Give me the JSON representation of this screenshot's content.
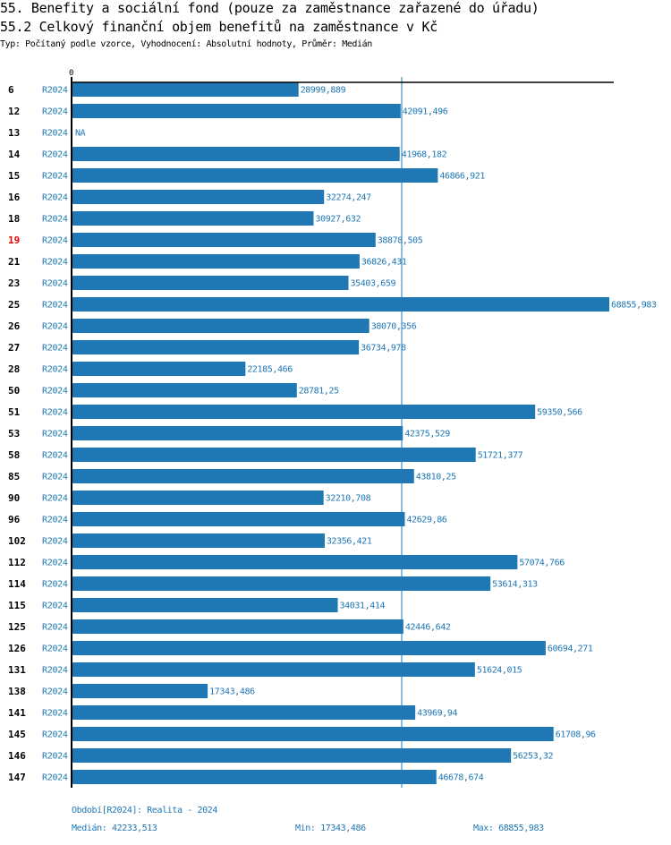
{
  "header": {
    "title": "55. Benefity a sociální fond (pouze za zaměstnance zařazené do úřadu)",
    "subtitle": "55.2 Celkový finanční objem benefitů na zaměstnance v Kč",
    "meta": "Typ: Počítaný podle vzorce, Vyhodnocení: Absolutní hodnoty, Průměr: Medián"
  },
  "colors": {
    "bar": "#1f77b4",
    "highlight": "#e00000",
    "axis": "#000000",
    "median_line": "#1f77b4"
  },
  "chart_data": {
    "type": "bar",
    "orientation": "horizontal",
    "title": "55.2 Celkový finanční objem benefitů na zaměstnance v Kč",
    "xlabel": "",
    "ylabel": "",
    "x_tick_labels": [
      "0"
    ],
    "xlim": [
      0,
      68855.983
    ],
    "grid": false,
    "period": "R2024",
    "highlighted_category": "19",
    "categories": [
      "6",
      "12",
      "13",
      "14",
      "15",
      "16",
      "18",
      "19",
      "21",
      "23",
      "25",
      "26",
      "27",
      "28",
      "50",
      "51",
      "53",
      "58",
      "85",
      "90",
      "96",
      "102",
      "112",
      "114",
      "115",
      "125",
      "126",
      "131",
      "138",
      "141",
      "145",
      "146",
      "147"
    ],
    "values": [
      28999.889,
      42091.496,
      null,
      41968.182,
      46866.921,
      32274.247,
      30927.632,
      38878.505,
      36826.431,
      35403.659,
      68855.983,
      38070.356,
      36734.978,
      22185.466,
      28781.25,
      59350.566,
      42375.529,
      51721.377,
      43810.25,
      32210.708,
      42629.86,
      32356.421,
      57074.766,
      53614.313,
      34031.414,
      42446.642,
      60694.271,
      51624.015,
      17343.486,
      43969.94,
      61708.96,
      56253.32,
      46678.674
    ],
    "value_labels": [
      "28999,889",
      "42091,496",
      "NA",
      "41968,182",
      "46866,921",
      "32274,247",
      "30927,632",
      "38878,505",
      "36826,431",
      "35403,659",
      "68855,983",
      "38070,356",
      "36734,978",
      "22185,466",
      "28781,25",
      "59350,566",
      "42375,529",
      "51721,377",
      "43810,25",
      "32210,708",
      "42629,86",
      "32356,421",
      "57074,766",
      "53614,313",
      "34031,414",
      "42446,642",
      "60694,271",
      "51624,015",
      "17343,486",
      "43969,94",
      "61708,96",
      "56253,32",
      "46678,674"
    ],
    "median": 42233.513,
    "min": 17343.486,
    "max": 68855.983
  },
  "footer": {
    "period_legend": "Období[R2024]: Realita - 2024",
    "median_label": "Medián: 42233,513",
    "min_label": "Min: 17343,486",
    "max_label": "Max: 68855,983"
  }
}
